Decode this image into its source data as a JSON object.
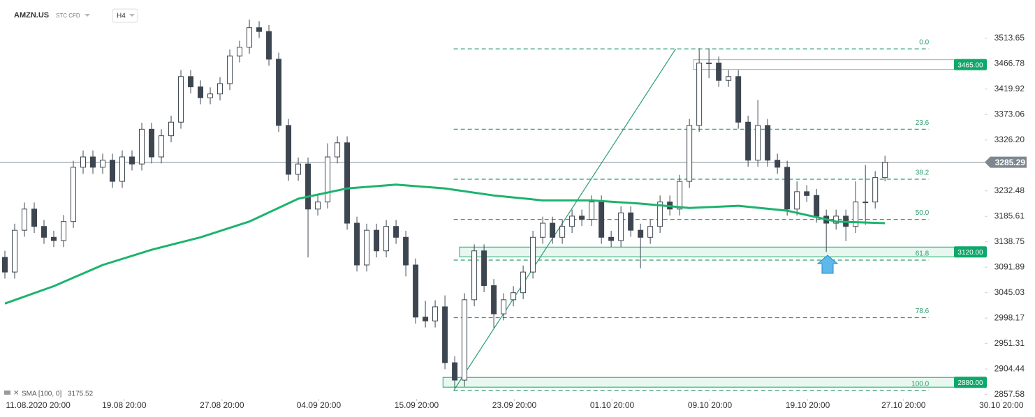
{
  "header": {
    "symbol": "AMZN.US",
    "market": "STC CFD",
    "interval": "H4"
  },
  "chart_data": {
    "type": "candlestick",
    "xlim": [
      -0.5,
      100.2
    ],
    "ylim": [
      2852,
      3584
    ],
    "xticks": [
      {
        "value": 3.4,
        "label": "11.08.2020 20:00"
      },
      {
        "value": 12.2,
        "label": "19.08 20:00"
      },
      {
        "value": 22.2,
        "label": "27.08 20:00"
      },
      {
        "value": 32.1,
        "label": "04.09 20:00"
      },
      {
        "value": 42.1,
        "label": "15.09 20:00"
      },
      {
        "value": 52.1,
        "label": "23.09 20:00"
      },
      {
        "value": 62.1,
        "label": "01.10 20:00"
      },
      {
        "value": 72.1,
        "label": "09.10 20:00"
      },
      {
        "value": 82.1,
        "label": "19.10 20:00"
      },
      {
        "value": 91.9,
        "label": "27.10 20:00"
      },
      {
        "value": 101.9,
        "label": "30.10 20:00"
      }
    ],
    "yticks": [
      3513.65,
      3466.78,
      3419.92,
      3373.06,
      {
        "value": 3326.2,
        "label": "3326.20"
      },
      3232.48,
      3185.61,
      3138.75,
      3091.89,
      3045.03,
      2998.17,
      2951.31,
      2904.44,
      2857.58
    ],
    "up_color": "#ffffff",
    "down_color": "#3d4650",
    "outline_color": "#3d4650",
    "open": [
      3110,
      3083,
      3160,
      3199,
      3167,
      3147,
      3141,
      3176,
      3276,
      3295,
      3276,
      3289,
      3250,
      3295,
      3282,
      3346,
      3295,
      3334,
      3359,
      3443,
      3424,
      3404,
      3411,
      3430,
      3481,
      3497,
      3533,
      3526,
      3475,
      3353,
      3263,
      3282,
      3199,
      3212,
      3295,
      3321,
      3173,
      3096,
      3160,
      3122,
      3167,
      3147,
      3096,
      3000,
      2993,
      3019,
      2916,
      2884,
      3032,
      3122,
      3058,
      3006,
      3032,
      3045,
      3083,
      3147,
      3173,
      3147,
      3167,
      3186,
      3180,
      3212,
      3147,
      3141,
      3192,
      3160,
      3147,
      3167,
      3212,
      3199,
      3250,
      3353,
      3468,
      3468,
      3436,
      3443,
      3359,
      3289,
      3353,
      3289,
      3276,
      3199,
      3231,
      3224,
      3186,
      3173,
      3186,
      3167,
      3212,
      3212,
      3257
    ],
    "high": [
      3122,
      3172,
      3211,
      3211,
      3179,
      3159,
      3188,
      3288,
      3307,
      3307,
      3301,
      3301,
      3307,
      3307,
      3358,
      3358,
      3346,
      3371,
      3455,
      3455,
      3436,
      3423,
      3442,
      3493,
      3509,
      3548,
      3545,
      3538,
      3487,
      3365,
      3294,
      3294,
      3224,
      3320,
      3333,
      3333,
      3185,
      3172,
      3172,
      3179,
      3179,
      3159,
      3108,
      3030,
      3031,
      3040,
      2928,
      3044,
      3134,
      3134,
      3070,
      3044,
      3057,
      3095,
      3159,
      3185,
      3185,
      3179,
      3198,
      3198,
      3224,
      3224,
      3159,
      3204,
      3204,
      3172,
      3179,
      3224,
      3224,
      3262,
      3365,
      3495,
      3495,
      3480,
      3455,
      3455,
      3371,
      3400,
      3365,
      3301,
      3288,
      3250,
      3243,
      3236,
      3198,
      3198,
      3198,
      3250,
      3280,
      3269,
      3297
    ],
    "low": [
      3071,
      3071,
      3148,
      3155,
      3135,
      3129,
      3129,
      3164,
      3264,
      3264,
      3264,
      3238,
      3238,
      3270,
      3270,
      3283,
      3283,
      3322,
      3347,
      3412,
      3392,
      3392,
      3399,
      3418,
      3469,
      3485,
      3514,
      3463,
      3341,
      3251,
      3251,
      3110,
      3187,
      3200,
      3283,
      3161,
      3084,
      3084,
      3110,
      3110,
      3135,
      3075,
      2988,
      2981,
      2981,
      2904,
      2870,
      2872,
      3020,
      3046,
      2980,
      2994,
      3020,
      3033,
      3071,
      3135,
      3135,
      3135,
      3155,
      3168,
      3168,
      3135,
      3129,
      3129,
      3148,
      3090,
      3135,
      3155,
      3187,
      3187,
      3238,
      3341,
      3440,
      3424,
      3424,
      3347,
      3277,
      3277,
      3277,
      3264,
      3187,
      3187,
      3212,
      3174,
      3120,
      3161,
      3140,
      3155,
      3170,
      3200,
      3250
    ],
    "close": [
      3083,
      3160,
      3199,
      3167,
      3147,
      3141,
      3176,
      3276,
      3295,
      3276,
      3289,
      3250,
      3295,
      3282,
      3346,
      3295,
      3334,
      3359,
      3443,
      3424,
      3404,
      3411,
      3430,
      3481,
      3497,
      3533,
      3526,
      3475,
      3353,
      3263,
      3282,
      3199,
      3212,
      3295,
      3321,
      3173,
      3096,
      3160,
      3122,
      3167,
      3147,
      3096,
      3000,
      2993,
      3019,
      2916,
      2884,
      3032,
      3122,
      3058,
      3006,
      3032,
      3045,
      3083,
      3147,
      3173,
      3147,
      3167,
      3186,
      3180,
      3212,
      3147,
      3141,
      3192,
      3160,
      3147,
      3167,
      3212,
      3199,
      3250,
      3353,
      3468,
      3468,
      3436,
      3443,
      3359,
      3289,
      3353,
      3289,
      3276,
      3199,
      3231,
      3224,
      3186,
      3173,
      3186,
      3167,
      3212,
      3212,
      3257,
      3285
    ],
    "sma": {
      "name": "SMA [100, 0]",
      "last": 3175.52,
      "color": "#1cb36e",
      "x": [
        0,
        5,
        10,
        15,
        20,
        25,
        30,
        35,
        40,
        45,
        50,
        55,
        60,
        65,
        70,
        75,
        80,
        85,
        90
      ],
      "values": [
        3025,
        3057,
        3096,
        3124,
        3147,
        3176,
        3218,
        3237,
        3244,
        3237,
        3224,
        3215,
        3215,
        3209,
        3201,
        3205,
        3196,
        3176,
        3173
      ]
    },
    "fib": {
      "color": "#2a9d6f",
      "x": [
        45.9,
        68.6
      ],
      "end_x": 94.5,
      "levels": [
        {
          "value": 3494,
          "label": "0.0"
        },
        {
          "value": 3346,
          "label": "23.6"
        },
        {
          "value": 3254,
          "label": "38.2"
        },
        {
          "value": 3180,
          "label": "50.0"
        },
        {
          "value": 3105,
          "label": "61.8"
        },
        {
          "value": 2999,
          "label": "78.6"
        },
        {
          "value": 2865,
          "label": "100.0"
        }
      ]
    },
    "zones": [
      {
        "value": 3465,
        "label": "3465.00",
        "start_x": 70.4,
        "color": "#aaaaaa"
      },
      {
        "value": 3120,
        "label": "3120.00",
        "start_x": 46.5,
        "color": "#0da86a"
      },
      {
        "value": 2880,
        "label": "2880.00",
        "start_x": 44.8,
        "color": "#0da86a"
      }
    ],
    "tag_color": "#0da86a",
    "current_price": 3285.29,
    "current_color": "#7d8790"
  }
}
